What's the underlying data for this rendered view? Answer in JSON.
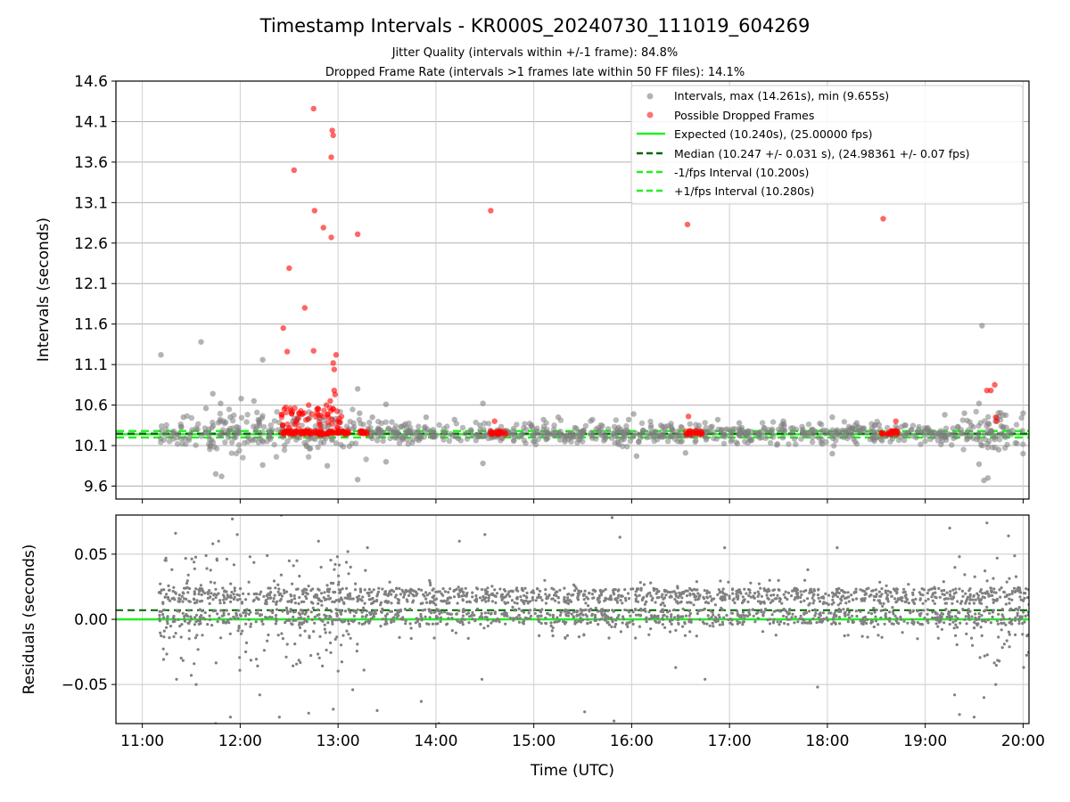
{
  "chart_data": [
    {
      "type": "scatter",
      "title": "Timestamp Intervals - KR000S_20240730_111019_604269",
      "subtitle_lines": [
        "Jitter Quality (intervals within +/-1 frame): 84.8%",
        "Dropped Frame Rate (intervals >1 frames late within 50 FF files): 14.1%"
      ],
      "xlabel": "",
      "ylabel": "Intervals (seconds)",
      "xlim_hours": [
        10.73,
        20.06
      ],
      "ylim": [
        9.44,
        14.6
      ],
      "yticks": [
        9.6,
        10.1,
        10.6,
        11.1,
        11.6,
        12.1,
        12.6,
        13.1,
        13.6,
        14.1,
        14.6
      ],
      "ytick_labels": [
        "9.6",
        "10.1",
        "10.6",
        "11.1",
        "11.6",
        "12.1",
        "12.6",
        "13.1",
        "13.6",
        "14.1",
        "14.6"
      ],
      "grid": true,
      "legend_position": "top-right",
      "legend": [
        "Intervals, max (14.261s), min (9.655s)",
        "Possible Dropped Frames",
        "Expected (10.240s), (25.00000 fps)",
        "Median (10.247 +/- 0.031 s), (24.98361 +/- 0.07 fps)",
        "-1/fps Interval (10.200s)",
        "+1/fps Interval (10.280s)"
      ],
      "reference_lines": {
        "expected": 10.24,
        "median": 10.247,
        "minus_one_frame": 10.2,
        "plus_one_frame": 10.28
      },
      "series": [
        {
          "name": "Intervals, max (14.261s), min (9.655s)",
          "color": "#808080",
          "points_time_interval": [
            [
              11.19,
              11.22
            ],
            [
              11.6,
              11.38
            ],
            [
              11.42,
              10.45
            ],
            [
              11.65,
              10.56
            ],
            [
              11.72,
              10.74
            ],
            [
              11.8,
              10.62
            ],
            [
              11.9,
              10.45
            ],
            [
              11.75,
              9.75
            ],
            [
              11.81,
              9.72
            ],
            [
              12.01,
              10.68
            ],
            [
              12.14,
              10.65
            ],
            [
              12.23,
              11.16
            ],
            [
              12.3,
              10.22
            ],
            [
              12.23,
              9.86
            ],
            [
              12.43,
              10.32
            ],
            [
              12.6,
              10.44
            ],
            [
              12.72,
              10.22
            ],
            [
              12.85,
              10.25
            ],
            [
              12.89,
              9.85
            ],
            [
              13.2,
              10.8
            ],
            [
              13.22,
              10.5
            ],
            [
              13.2,
              9.68
            ],
            [
              13.35,
              10.45
            ],
            [
              13.49,
              10.61
            ],
            [
              13.49,
              9.9
            ],
            [
              13.7,
              10.25
            ],
            [
              13.9,
              10.45
            ],
            [
              14.19,
              10.42
            ],
            [
              14.3,
              10.25
            ],
            [
              14.45,
              10.35
            ],
            [
              14.48,
              10.62
            ],
            [
              14.48,
              9.88
            ],
            [
              14.75,
              10.25
            ],
            [
              15.1,
              10.42
            ],
            [
              15.25,
              10.45
            ],
            [
              15.42,
              10.32
            ],
            [
              15.6,
              10.42
            ],
            [
              15.85,
              10.25
            ],
            [
              15.97,
              10.42
            ],
            [
              16.02,
              10.49
            ],
            [
              16.05,
              9.97
            ],
            [
              16.3,
              10.35
            ],
            [
              16.5,
              10.15
            ],
            [
              16.55,
              10.01
            ],
            [
              16.88,
              10.42
            ],
            [
              17.1,
              10.38
            ],
            [
              17.3,
              10.25
            ],
            [
              17.55,
              10.4
            ],
            [
              17.8,
              10.25
            ],
            [
              18.05,
              10.45
            ],
            [
              18.05,
              10.0
            ],
            [
              18.3,
              10.38
            ],
            [
              18.5,
              10.2
            ],
            [
              18.8,
              10.35
            ],
            [
              19.05,
              10.25
            ],
            [
              19.2,
              10.48
            ],
            [
              19.4,
              10.5
            ],
            [
              19.55,
              10.62
            ],
            [
              19.58,
              11.58
            ],
            [
              19.6,
              9.67
            ],
            [
              19.64,
              9.7
            ],
            [
              19.55,
              9.87
            ],
            [
              19.75,
              10.05
            ],
            [
              20.0,
              10.5
            ],
            [
              20.0,
              10.0
            ]
          ]
        },
        {
          "name": "Possible Dropped Frames",
          "color": "#ff0000",
          "points_time_interval": [
            [
              12.75,
              14.26
            ],
            [
              12.94,
              13.99
            ],
            [
              12.95,
              13.93
            ],
            [
              12.93,
              13.66
            ],
            [
              12.55,
              13.5
            ],
            [
              12.76,
              13.0
            ],
            [
              12.85,
              12.79
            ],
            [
              12.93,
              12.67
            ],
            [
              13.2,
              12.71
            ],
            [
              12.5,
              12.29
            ],
            [
              12.66,
              11.8
            ],
            [
              12.44,
              11.55
            ],
            [
              12.48,
              11.26
            ],
            [
              12.75,
              11.27
            ],
            [
              12.98,
              11.22
            ],
            [
              12.95,
              11.12
            ],
            [
              12.96,
              11.04
            ],
            [
              12.96,
              10.78
            ],
            [
              12.97,
              10.73
            ],
            [
              12.92,
              10.65
            ],
            [
              12.88,
              10.6
            ],
            [
              12.45,
              10.55
            ],
            [
              12.6,
              10.5
            ],
            [
              12.7,
              10.6
            ],
            [
              12.8,
              10.55
            ],
            [
              12.9,
              10.45
            ],
            [
              13.0,
              10.4
            ],
            [
              14.56,
              13.0
            ],
            [
              14.6,
              10.4
            ],
            [
              16.57,
              12.83
            ],
            [
              16.58,
              10.46
            ],
            [
              18.57,
              12.9
            ],
            [
              18.7,
              10.4
            ],
            [
              19.63,
              10.78
            ],
            [
              19.67,
              10.78
            ],
            [
              19.71,
              10.85
            ],
            [
              19.72,
              10.45
            ],
            [
              19.73,
              10.4
            ]
          ],
          "dense_clusters_hours": [
            [
              12.42,
              13.12
            ],
            [
              13.22,
              13.32
            ],
            [
              14.55,
              14.72
            ],
            [
              16.55,
              16.72
            ],
            [
              18.55,
              18.72
            ]
          ],
          "cluster_interval": 10.26
        }
      ]
    },
    {
      "type": "scatter",
      "xlabel": "Time (UTC)",
      "ylabel": "Residuals (seconds)",
      "xlim_hours": [
        10.73,
        20.06
      ],
      "ylim": [
        -0.08,
        0.08
      ],
      "yticks": [
        -0.05,
        0.0,
        0.05
      ],
      "ytick_labels": [
        "−0.05",
        "0.00",
        "0.05"
      ],
      "xticks_hours": [
        11,
        12,
        13,
        14,
        15,
        16,
        17,
        18,
        19,
        20
      ],
      "xtick_labels": [
        "11:00",
        "12:00",
        "13:00",
        "14:00",
        "15:00",
        "16:00",
        "17:00",
        "18:00",
        "19:00",
        "20:00"
      ],
      "grid": true,
      "reference_lines": {
        "zero": 0.0,
        "median_offset": 0.007
      },
      "series": [
        {
          "name": "residuals",
          "color": "#808080",
          "time_range_hours": [
            11.17,
            20.06
          ],
          "typical_range": [
            -0.015,
            0.03
          ],
          "outlier_points": [
            [
              11.34,
              0.066
            ],
            [
              11.47,
              0.034
            ],
            [
              11.72,
              0.058
            ],
            [
              11.78,
              0.06
            ],
            [
              11.92,
              0.077
            ],
            [
              11.97,
              0.065
            ],
            [
              12.1,
              0.048
            ],
            [
              12.42,
              0.08
            ],
            [
              12.58,
              0.045
            ],
            [
              12.8,
              0.06
            ],
            [
              13.1,
              0.052
            ],
            [
              13.3,
              0.055
            ],
            [
              14.24,
              0.06
            ],
            [
              14.5,
              0.065
            ],
            [
              15.8,
              0.078
            ],
            [
              15.88,
              0.063
            ],
            [
              16.95,
              0.055
            ],
            [
              17.8,
              0.038
            ],
            [
              18.1,
              0.055
            ],
            [
              19.25,
              0.07
            ],
            [
              19.63,
              0.074
            ],
            [
              19.85,
              0.064
            ],
            [
              11.35,
              -0.046
            ],
            [
              11.5,
              -0.043
            ],
            [
              11.55,
              -0.05
            ],
            [
              11.75,
              -0.08
            ],
            [
              11.9,
              -0.075
            ],
            [
              12.2,
              -0.058
            ],
            [
              12.4,
              -0.075
            ],
            [
              12.7,
              -0.072
            ],
            [
              12.95,
              -0.069
            ],
            [
              13.15,
              -0.054
            ],
            [
              13.4,
              -0.07
            ],
            [
              13.85,
              -0.063
            ],
            [
              14.03,
              -0.08
            ],
            [
              14.47,
              -0.046
            ],
            [
              15.52,
              -0.071
            ],
            [
              15.82,
              -0.078
            ],
            [
              16.45,
              -0.037
            ],
            [
              16.75,
              -0.046
            ],
            [
              17.9,
              -0.052
            ],
            [
              19.3,
              -0.058
            ],
            [
              19.35,
              -0.073
            ],
            [
              19.5,
              -0.075
            ],
            [
              19.6,
              -0.06
            ],
            [
              19.72,
              -0.05
            ]
          ]
        }
      ]
    }
  ]
}
